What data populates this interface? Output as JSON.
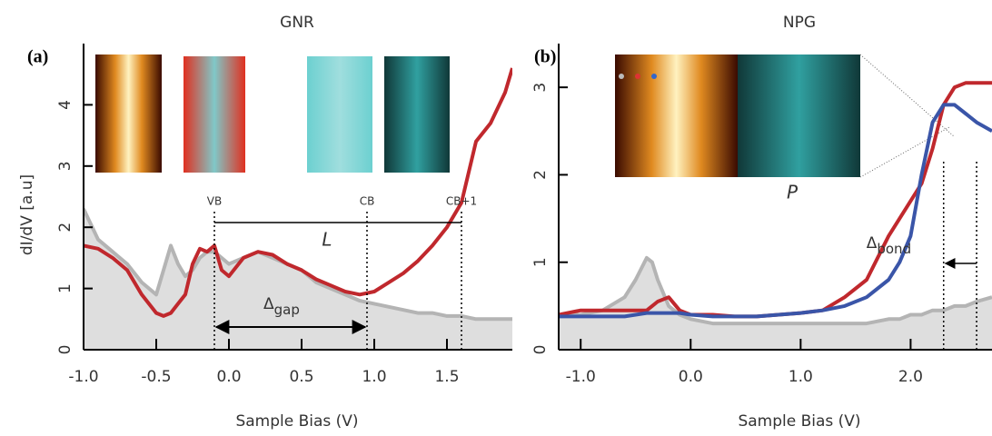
{
  "chart_data": [
    {
      "type": "line",
      "panel_label": "(a)",
      "title": "GNR",
      "x_label": "Sample Bias (V)",
      "y_label": "dI/dV [a.u]",
      "x": [
        -1.0,
        -0.9,
        -0.8,
        -0.7,
        -0.6,
        -0.5,
        -0.45,
        -0.4,
        -0.35,
        -0.3,
        -0.25,
        -0.2,
        -0.15,
        -0.1,
        -0.05,
        0.0,
        0.1,
        0.2,
        0.3,
        0.4,
        0.5,
        0.6,
        0.7,
        0.8,
        0.9,
        1.0,
        1.1,
        1.2,
        1.3,
        1.4,
        1.5,
        1.6,
        1.7,
        1.8,
        1.9,
        1.95
      ],
      "series": [
        {
          "color": "#b4b4b4",
          "fill": "#dedede",
          "values": [
            2.3,
            1.8,
            1.6,
            1.4,
            1.1,
            0.9,
            1.3,
            1.7,
            1.4,
            1.2,
            1.3,
            1.5,
            1.6,
            1.6,
            1.5,
            1.4,
            1.5,
            1.6,
            1.5,
            1.4,
            1.3,
            1.1,
            1.0,
            0.9,
            0.8,
            0.75,
            0.7,
            0.65,
            0.6,
            0.6,
            0.55,
            0.55,
            0.5,
            0.5,
            0.5,
            0.5
          ]
        },
        {
          "color": "#c0282d",
          "values": [
            1.7,
            1.65,
            1.5,
            1.3,
            0.9,
            0.6,
            0.55,
            0.6,
            0.75,
            0.9,
            1.4,
            1.65,
            1.6,
            1.7,
            1.3,
            1.2,
            1.5,
            1.6,
            1.55,
            1.4,
            1.3,
            1.15,
            1.05,
            0.95,
            0.9,
            0.95,
            1.1,
            1.25,
            1.45,
            1.7,
            2.0,
            2.4,
            3.4,
            3.7,
            4.2,
            4.6
          ]
        }
      ],
      "xlim": [
        -1.0,
        1.95
      ],
      "xticks": [
        {
          "value": -1.0,
          "label": "-1.0"
        },
        -0.5,
        {
          "value": 0.0,
          "label": "0.0"
        },
        0.5,
        {
          "value": 1.0,
          "label": "1.0"
        },
        1.5
      ],
      "ylim": [
        0,
        5.0
      ],
      "yticks": [
        0,
        1,
        2,
        3,
        4
      ],
      "markers": [
        {
          "label": "VB",
          "x": -0.1
        },
        {
          "label": "CB",
          "x": 0.95
        },
        {
          "label": "CB+1",
          "x": 1.6
        }
      ],
      "span_label": "L",
      "gap_label": {
        "symbol": "Δ",
        "subscript": "gap"
      }
    },
    {
      "type": "line",
      "panel_label": "(b)",
      "title": "NPG",
      "x_label": "Sample Bias (V)",
      "x": [
        -1.2,
        -1.0,
        -0.8,
        -0.6,
        -0.5,
        -0.4,
        -0.35,
        -0.3,
        -0.2,
        -0.1,
        0.0,
        0.2,
        0.4,
        0.6,
        0.8,
        1.0,
        1.2,
        1.4,
        1.6,
        1.8,
        1.9,
        2.0,
        2.1,
        2.2,
        2.3,
        2.4,
        2.5,
        2.6,
        2.74
      ],
      "series": [
        {
          "color": "#b4b4b4",
          "fill": "#dedede",
          "values": [
            0.4,
            0.4,
            0.45,
            0.6,
            0.8,
            1.05,
            1.0,
            0.8,
            0.5,
            0.4,
            0.35,
            0.3,
            0.3,
            0.3,
            0.3,
            0.3,
            0.3,
            0.3,
            0.3,
            0.35,
            0.35,
            0.4,
            0.4,
            0.45,
            0.45,
            0.5,
            0.5,
            0.55,
            0.6
          ]
        },
        {
          "color": "#c0282d",
          "values": [
            0.4,
            0.45,
            0.45,
            0.45,
            0.45,
            0.45,
            0.5,
            0.55,
            0.6,
            0.45,
            0.4,
            0.4,
            0.38,
            0.38,
            0.4,
            0.42,
            0.45,
            0.6,
            0.8,
            1.3,
            1.5,
            1.7,
            1.9,
            2.3,
            2.8,
            3.0,
            3.05,
            3.05,
            3.05
          ]
        },
        {
          "color": "#3a55a8",
          "values": [
            0.38,
            0.38,
            0.38,
            0.38,
            0.4,
            0.42,
            0.42,
            0.42,
            0.42,
            0.42,
            0.4,
            0.38,
            0.38,
            0.38,
            0.4,
            0.42,
            0.45,
            0.5,
            0.6,
            0.8,
            1.0,
            1.3,
            2.0,
            2.6,
            2.8,
            2.8,
            2.7,
            2.6,
            2.5
          ]
        }
      ],
      "xlim": [
        -1.2,
        2.74
      ],
      "xticks": [
        {
          "value": -1.0,
          "label": "-1.0"
        },
        {
          "value": 0.0,
          "label": "0.0"
        },
        {
          "value": 1.0,
          "label": "1.0"
        },
        {
          "value": 2.0,
          "label": "2.0"
        }
      ],
      "ylim": [
        0,
        3.5
      ],
      "yticks": [
        0,
        1,
        2,
        3
      ],
      "markers": [
        {
          "x": 2.3
        },
        {
          "x": 2.6
        }
      ],
      "inset_label": "P",
      "bond_label": {
        "symbol": "Δ",
        "subscript": "bond"
      }
    }
  ]
}
